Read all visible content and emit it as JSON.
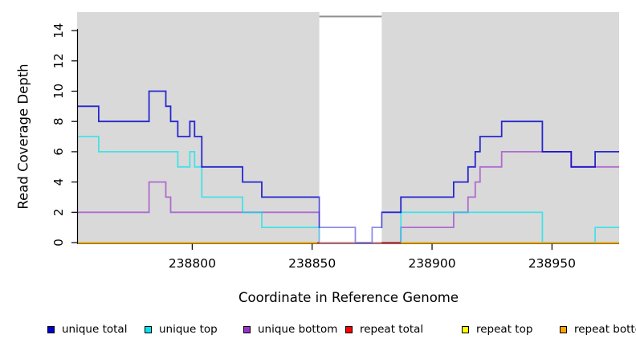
{
  "figure": {
    "x_axis_title": "Coordinate in Reference Genome",
    "y_axis_title": "Read Coverage Depth"
  },
  "legend": {
    "items": [
      {
        "label": "unique total",
        "color": "#0000cd"
      },
      {
        "label": "unique top",
        "color": "#00e5ee"
      },
      {
        "label": "unique bottom",
        "color": "#9932cc"
      },
      {
        "label": "repeat total",
        "color": "#ff0000"
      },
      {
        "label": "repeat top",
        "color": "#ffff00"
      },
      {
        "label": "repeat bottom",
        "color": "#ffa500"
      }
    ]
  },
  "chart_data": {
    "type": "line",
    "step": true,
    "title": "",
    "xlabel": "Coordinate in Reference Genome",
    "ylabel": "Read Coverage Depth",
    "xlim": [
      238752,
      238978
    ],
    "ylim": [
      0,
      15.25
    ],
    "x_ticks": [
      238800,
      238850,
      238900,
      238950
    ],
    "y_ticks": [
      0,
      2,
      4,
      6,
      8,
      10,
      12,
      14
    ],
    "plot_background": "#d9d9d9",
    "grid": false,
    "legend_position": "bottom",
    "gap_band": {
      "x0": 238853,
      "x1": 238879,
      "fill": "#ffffff",
      "overlay_alpha": 0.45,
      "top_border_color": "#8f8f8f"
    },
    "series": [
      {
        "name": "unique total",
        "color": "#0000cd",
        "opacity": 0.82,
        "segments": [
          [
            [
              238752,
              9
            ],
            [
              238761,
              8
            ],
            [
              238782,
              10
            ],
            [
              238789,
              9
            ],
            [
              238791,
              8
            ],
            [
              238794,
              7
            ],
            [
              238799,
              8
            ],
            [
              238801,
              7
            ],
            [
              238804,
              5
            ],
            [
              238821,
              4
            ],
            [
              238829,
              3
            ],
            [
              238853,
              1
            ],
            [
              238868,
              0
            ],
            [
              238875,
              1
            ],
            [
              238879,
              2
            ],
            [
              238887,
              3
            ],
            [
              238909,
              4
            ],
            [
              238915,
              5
            ],
            [
              238918,
              6
            ],
            [
              238920,
              7
            ],
            [
              238929,
              8
            ],
            [
              238946,
              6
            ],
            [
              238958,
              5
            ],
            [
              238968,
              6
            ],
            [
              238978,
              6
            ]
          ]
        ]
      },
      {
        "name": "unique top",
        "color": "#00e5ee",
        "opacity": 0.68,
        "segments": [
          [
            [
              238752,
              7
            ],
            [
              238761,
              6
            ],
            [
              238794,
              5
            ],
            [
              238799,
              6
            ],
            [
              238801,
              5
            ],
            [
              238804,
              3
            ],
            [
              238821,
              2
            ],
            [
              238829,
              1
            ],
            [
              238853,
              0
            ],
            [
              238887,
              2
            ],
            [
              238946,
              0
            ],
            [
              238968,
              1
            ],
            [
              238978,
              1
            ]
          ]
        ]
      },
      {
        "name": "unique bottom",
        "color": "#9932cc",
        "opacity": 0.66,
        "segments": [
          [
            [
              238752,
              2
            ],
            [
              238782,
              4
            ],
            [
              238789,
              3
            ],
            [
              238791,
              2
            ],
            [
              238853,
              0
            ],
            [
              238887,
              1
            ],
            [
              238909,
              2
            ],
            [
              238915,
              3
            ],
            [
              238918,
              4
            ],
            [
              238920,
              5
            ],
            [
              238929,
              6
            ],
            [
              238958,
              5
            ],
            [
              238978,
              5
            ]
          ]
        ]
      },
      {
        "name": "repeat total",
        "color": "#ff0000",
        "opacity": 0.8,
        "segments": [
          [
            [
              238852,
              0
            ],
            [
              238887,
              0
            ]
          ]
        ]
      },
      {
        "name": "repeat top",
        "color": "#ffff00",
        "opacity": 0.9,
        "segments": [
          [
            [
              238752,
              0
            ],
            [
              238852,
              0
            ]
          ],
          [
            [
              238887,
              0
            ],
            [
              238978,
              0
            ]
          ]
        ]
      },
      {
        "name": "repeat bottom",
        "color": "#ffa500",
        "opacity": 0.92,
        "segments": [
          [
            [
              238752,
              0
            ],
            [
              238852,
              0
            ]
          ],
          [
            [
              238887,
              0
            ],
            [
              238978,
              0
            ]
          ]
        ]
      }
    ],
    "draw_order": [
      4,
      2,
      1,
      3,
      5,
      0
    ]
  }
}
